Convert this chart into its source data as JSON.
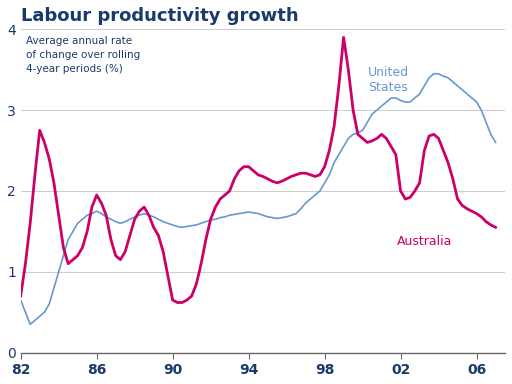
{
  "title": "Labour productivity growth",
  "ylabel_text": "Average annual rate\nof change over rolling\n4-year periods (%)",
  "us_label": "United\nStates",
  "aus_label": "Australia",
  "title_color": "#1a3a6b",
  "us_color": "#6699cc",
  "aus_color": "#cc0066",
  "ylim": [
    0,
    4
  ],
  "xlim": [
    1982,
    2007.5
  ],
  "background_color": "#ffffff",
  "us_x": [
    1982.0,
    1982.25,
    1982.5,
    1982.75,
    1983.0,
    1983.25,
    1983.5,
    1983.75,
    1984.0,
    1984.25,
    1984.5,
    1984.75,
    1985.0,
    1985.25,
    1985.5,
    1985.75,
    1986.0,
    1986.25,
    1986.5,
    1986.75,
    1987.0,
    1987.25,
    1987.5,
    1987.75,
    1988.0,
    1988.25,
    1988.5,
    1988.75,
    1989.0,
    1989.25,
    1989.5,
    1989.75,
    1990.0,
    1990.25,
    1990.5,
    1990.75,
    1991.0,
    1991.25,
    1991.5,
    1991.75,
    1992.0,
    1992.25,
    1992.5,
    1992.75,
    1993.0,
    1993.25,
    1993.5,
    1993.75,
    1994.0,
    1994.25,
    1994.5,
    1994.75,
    1995.0,
    1995.25,
    1995.5,
    1995.75,
    1996.0,
    1996.25,
    1996.5,
    1996.75,
    1997.0,
    1997.25,
    1997.5,
    1997.75,
    1998.0,
    1998.25,
    1998.5,
    1998.75,
    1999.0,
    1999.25,
    1999.5,
    1999.75,
    2000.0,
    2000.25,
    2000.5,
    2000.75,
    2001.0,
    2001.25,
    2001.5,
    2001.75,
    2002.0,
    2002.25,
    2002.5,
    2002.75,
    2003.0,
    2003.25,
    2003.5,
    2003.75,
    2004.0,
    2004.25,
    2004.5,
    2004.75,
    2005.0,
    2005.25,
    2005.5,
    2005.75,
    2006.0,
    2006.25,
    2006.5,
    2006.75,
    2007.0
  ],
  "us_y": [
    0.65,
    0.5,
    0.35,
    0.4,
    0.45,
    0.5,
    0.6,
    0.8,
    1.0,
    1.2,
    1.4,
    1.5,
    1.6,
    1.65,
    1.7,
    1.72,
    1.75,
    1.72,
    1.68,
    1.65,
    1.62,
    1.6,
    1.62,
    1.65,
    1.68,
    1.7,
    1.72,
    1.7,
    1.68,
    1.65,
    1.62,
    1.6,
    1.58,
    1.56,
    1.55,
    1.56,
    1.57,
    1.58,
    1.6,
    1.62,
    1.64,
    1.65,
    1.67,
    1.68,
    1.7,
    1.71,
    1.72,
    1.73,
    1.74,
    1.73,
    1.72,
    1.7,
    1.68,
    1.67,
    1.66,
    1.67,
    1.68,
    1.7,
    1.72,
    1.78,
    1.85,
    1.9,
    1.95,
    2.0,
    2.1,
    2.2,
    2.35,
    2.45,
    2.55,
    2.65,
    2.7,
    2.72,
    2.75,
    2.85,
    2.95,
    3.0,
    3.05,
    3.1,
    3.15,
    3.15,
    3.12,
    3.1,
    3.1,
    3.15,
    3.2,
    3.3,
    3.4,
    3.45,
    3.45,
    3.42,
    3.4,
    3.35,
    3.3,
    3.25,
    3.2,
    3.15,
    3.1,
    3.0,
    2.85,
    2.7,
    2.6
  ],
  "aus_x": [
    1982.0,
    1982.25,
    1982.5,
    1982.75,
    1983.0,
    1983.25,
    1983.5,
    1983.75,
    1984.0,
    1984.25,
    1984.5,
    1984.75,
    1985.0,
    1985.25,
    1985.5,
    1985.75,
    1986.0,
    1986.25,
    1986.5,
    1986.75,
    1987.0,
    1987.25,
    1987.5,
    1987.75,
    1988.0,
    1988.25,
    1988.5,
    1988.75,
    1989.0,
    1989.25,
    1989.5,
    1989.75,
    1990.0,
    1990.25,
    1990.5,
    1990.75,
    1991.0,
    1991.25,
    1991.5,
    1991.75,
    1992.0,
    1992.25,
    1992.5,
    1992.75,
    1993.0,
    1993.25,
    1993.5,
    1993.75,
    1994.0,
    1994.25,
    1994.5,
    1994.75,
    1995.0,
    1995.25,
    1995.5,
    1995.75,
    1996.0,
    1996.25,
    1996.5,
    1996.75,
    1997.0,
    1997.25,
    1997.5,
    1997.75,
    1998.0,
    1998.25,
    1998.5,
    1998.75,
    1999.0,
    1999.25,
    1999.5,
    1999.75,
    2000.0,
    2000.25,
    2000.5,
    2000.75,
    2001.0,
    2001.25,
    2001.5,
    2001.75,
    2002.0,
    2002.25,
    2002.5,
    2002.75,
    2003.0,
    2003.25,
    2003.5,
    2003.75,
    2004.0,
    2004.25,
    2004.5,
    2004.75,
    2005.0,
    2005.25,
    2005.5,
    2005.75,
    2006.0,
    2006.25,
    2006.5,
    2006.75,
    2007.0
  ],
  "aus_y": [
    0.7,
    1.1,
    1.6,
    2.2,
    2.75,
    2.6,
    2.4,
    2.1,
    1.7,
    1.3,
    1.1,
    1.15,
    1.2,
    1.3,
    1.5,
    1.8,
    1.95,
    1.85,
    1.7,
    1.4,
    1.2,
    1.15,
    1.25,
    1.45,
    1.65,
    1.75,
    1.8,
    1.7,
    1.55,
    1.45,
    1.25,
    0.95,
    0.65,
    0.62,
    0.62,
    0.65,
    0.7,
    0.85,
    1.1,
    1.4,
    1.65,
    1.8,
    1.9,
    1.95,
    2.0,
    2.15,
    2.25,
    2.3,
    2.3,
    2.25,
    2.2,
    2.18,
    2.15,
    2.12,
    2.1,
    2.12,
    2.15,
    2.18,
    2.2,
    2.22,
    2.22,
    2.2,
    2.18,
    2.2,
    2.3,
    2.5,
    2.8,
    3.3,
    3.9,
    3.5,
    3.0,
    2.7,
    2.65,
    2.6,
    2.62,
    2.65,
    2.7,
    2.65,
    2.55,
    2.45,
    2.0,
    1.9,
    1.92,
    2.0,
    2.1,
    2.5,
    2.68,
    2.7,
    2.65,
    2.5,
    2.35,
    2.15,
    1.9,
    1.82,
    1.78,
    1.75,
    1.72,
    1.68,
    1.62,
    1.58,
    1.55
  ]
}
